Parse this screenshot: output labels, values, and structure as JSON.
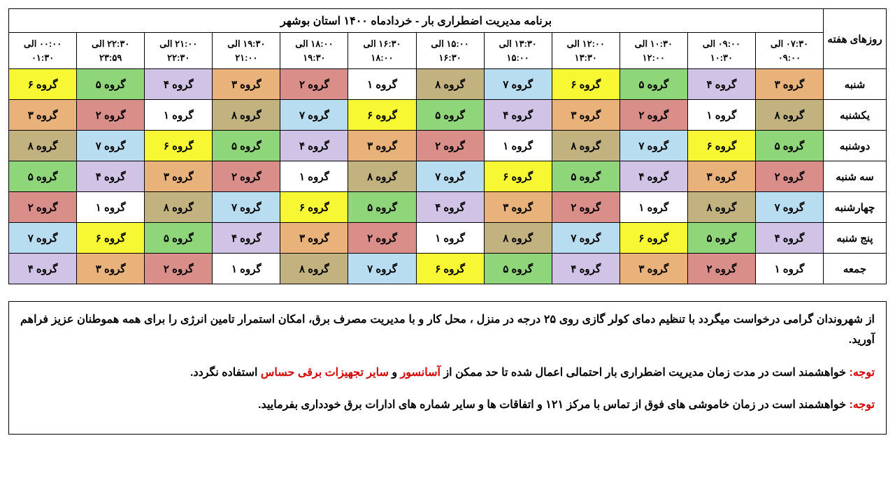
{
  "title": "برنامه مدیریت اضطراری بار - خردادماه ۱۴۰۰ استان بوشهر",
  "days_header": "روزهای هفته",
  "time_slots": [
    "۰۷:۳۰ الی ۰۹:۰۰",
    "۰۹:۰۰ الی ۱۰:۳۰",
    "۱۰:۳۰ الی ۱۲:۰۰",
    "۱۲:۰۰ الی ۱۳:۳۰",
    "۱۳:۳۰ الی ۱۵:۰۰",
    "۱۵:۰۰ الی ۱۶:۳۰",
    "۱۶:۳۰ الی ۱۸:۰۰",
    "۱۸:۰۰ الی ۱۹:۳۰",
    "۱۹:۳۰ الی ۲۱:۰۰",
    "۲۱:۰۰ الی ۲۲:۳۰",
    "۲۲:۳۰ الی ۲۳:۵۹",
    "۰۰:۰۰ الی ۰۱:۳۰"
  ],
  "days": [
    "شنبه",
    "یکشنبه",
    "دوشنبه",
    "سه شنبه",
    "چهارشنبه",
    "پنج شنبه",
    "جمعه"
  ],
  "group_label_prefix": "گروه ",
  "group_glyphs": {
    "1": "۱",
    "2": "۲",
    "3": "۳",
    "4": "۴",
    "5": "۵",
    "6": "۶",
    "7": "۷",
    "8": "۸"
  },
  "group_colors": {
    "1": "#ffffff",
    "2": "#d98e8a",
    "3": "#e8b27a",
    "4": "#d1c3e6",
    "5": "#8fd67a",
    "6": "#f7f733",
    "7": "#b8dcf0",
    "8": "#c2b280"
  },
  "grid": [
    [
      3,
      4,
      5,
      6,
      7,
      8,
      1,
      2,
      3,
      4,
      5,
      6
    ],
    [
      8,
      1,
      2,
      3,
      4,
      5,
      6,
      7,
      8,
      1,
      2,
      3
    ],
    [
      5,
      6,
      7,
      8,
      1,
      2,
      3,
      4,
      5,
      6,
      7,
      8
    ],
    [
      2,
      3,
      4,
      5,
      6,
      7,
      8,
      1,
      2,
      3,
      4,
      5
    ],
    [
      7,
      8,
      1,
      2,
      3,
      4,
      5,
      6,
      7,
      8,
      1,
      2
    ],
    [
      4,
      5,
      6,
      7,
      8,
      1,
      2,
      3,
      4,
      5,
      6,
      7
    ],
    [
      1,
      2,
      3,
      4,
      5,
      6,
      7,
      8,
      1,
      2,
      3,
      4
    ]
  ],
  "header_bg": "#ffffff",
  "border_color": "#000000",
  "text_color": "#000000",
  "notes": {
    "p1": "از شهروندان گرامی درخواست میگردد با تنظیم دمای کولر گازی روی ۲۵ درجه در منزل ، محل کار و با مدیریت مصرف برق، امکان استمرار تامین انرژی را برای همه هموطنان عزیز فراهم آورید.",
    "p2_pre": "توجه:",
    "p2_body_a": " خواهشمند است در مدت زمان مدیریت اضطراری بار احتمالی اعمال شده تا حد ممکن از ",
    "p2_hl1": "آسانسور",
    "p2_mid": " و ",
    "p2_hl2": "سایر تجهیزات برقی حساس",
    "p2_body_b": " استفاده نگردد.",
    "p3_pre": "توجه:",
    "p3_body": " خواهشمند است در زمان خاموشی های فوق از تماس با مرکز ۱۲۱ و اتفاقات ها و سایر شماره های ادارات برق خودداری بفرمایید."
  }
}
